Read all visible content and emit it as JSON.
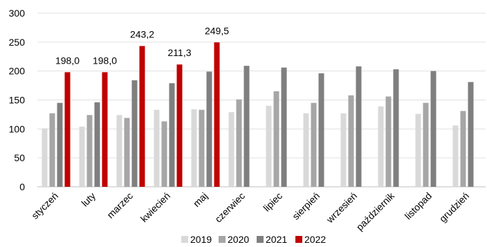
{
  "chart_data": {
    "type": "bar",
    "categories": [
      "styczeń",
      "luty",
      "marzec",
      "kwiecień",
      "maj",
      "czerwiec",
      "lipiec",
      "sierpień",
      "wrzesień",
      "październik",
      "listopad",
      "grudzień"
    ],
    "series": [
      {
        "name": "2019",
        "color": "#d9d9d9",
        "values": [
          101,
          104,
          124,
          133,
          134,
          129,
          140,
          127,
          127,
          139,
          126,
          106
        ]
      },
      {
        "name": "2020",
        "color": "#a6a6a6",
        "values": [
          127,
          124,
          119,
          113,
          133,
          151,
          165,
          145,
          158,
          156,
          145,
          131
        ]
      },
      {
        "name": "2021",
        "color": "#7f7f7f",
        "values": [
          145,
          146,
          184,
          179,
          199,
          209,
          206,
          196,
          208,
          203,
          200,
          181
        ]
      },
      {
        "name": "2022",
        "color": "#c00000",
        "values": [
          198.0,
          198.0,
          243.2,
          211.3,
          249.5,
          null,
          null,
          null,
          null,
          null,
          null,
          null
        ]
      }
    ],
    "data_labels": [
      "198,0",
      "198,0",
      "243,2",
      "211,3",
      "249,5"
    ],
    "y_ticks": [
      "0",
      "50",
      "100",
      "150",
      "200",
      "250",
      "300"
    ],
    "ylim": [
      0,
      300
    ],
    "grid": true,
    "legend_position": "bottom"
  }
}
